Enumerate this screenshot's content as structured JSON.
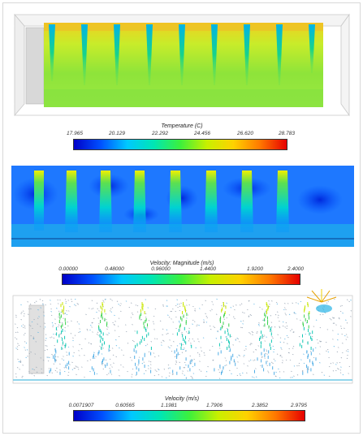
{
  "figure": {
    "panels": [
      {
        "legend": {
          "title": "Temperature (C)",
          "ticks": [
            "17.965",
            "20.129",
            "22.292",
            "24.456",
            "26.620",
            "28.783"
          ]
        }
      },
      {
        "legend": {
          "title": "Velocity: Magnitude (m/s)",
          "ticks": [
            "0.00000",
            "0.48000",
            "0.96000",
            "1.4400",
            "1.9200",
            "2.4000"
          ]
        }
      },
      {
        "legend": {
          "title": "Velocity (m/s)",
          "ticks": [
            "0.0071907",
            "0.60565",
            "1.1981",
            "1.7906",
            "2.3852",
            "2.9795"
          ]
        }
      }
    ],
    "colormap": [
      "#0000c8",
      "#0050ff",
      "#00c8ff",
      "#00e6b4",
      "#3cf03c",
      "#c8f000",
      "#ffd200",
      "#ff7800",
      "#e60000"
    ]
  }
}
